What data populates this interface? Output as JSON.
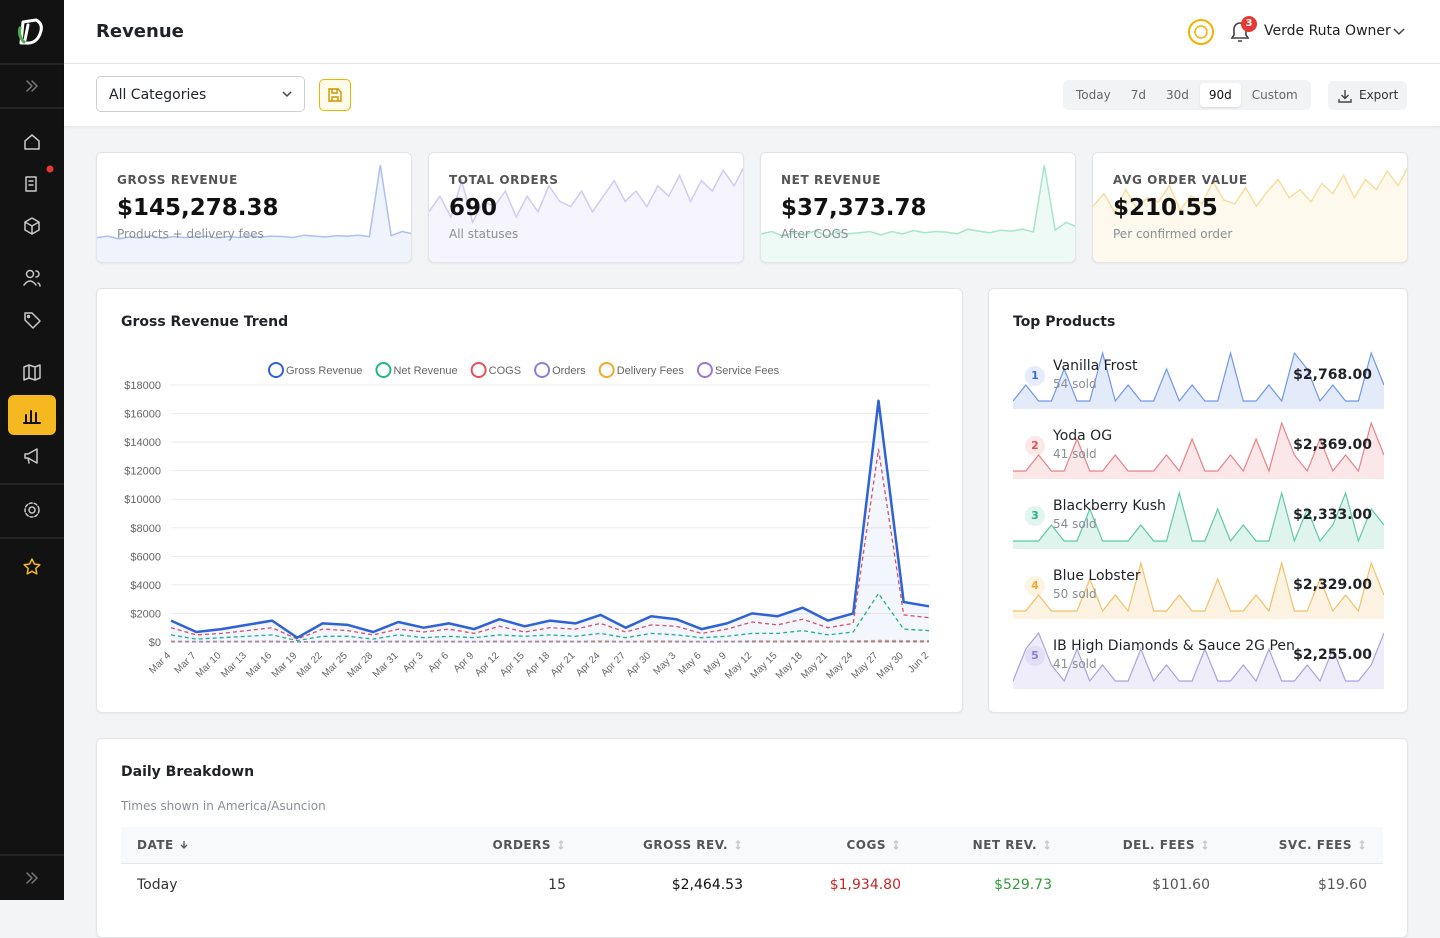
{
  "header": {
    "title": "Revenue",
    "notification_count": 3,
    "user": "Verde Ruta Owner"
  },
  "filters": {
    "category": "All Categories",
    "ranges": [
      "Today",
      "7d",
      "30d",
      "90d",
      "Custom"
    ],
    "selected_range": 3,
    "export": "Export"
  },
  "kpis": [
    {
      "label": "GROSS REVENUE",
      "value": "$145,278.38",
      "note": "Products + delivery fees",
      "color": "#8ea8ec",
      "trend": [
        1200,
        1500,
        900,
        1300,
        1100,
        1600,
        1000,
        1400,
        1200,
        1300,
        1500,
        1100,
        1400,
        1200,
        1600,
        1300,
        1500,
        1400,
        1200,
        1700,
        1500,
        1300,
        1600,
        1500,
        1700,
        1400,
        16900,
        1600,
        2500,
        2000
      ]
    },
    {
      "label": "TOTAL ORDERS",
      "value": "690",
      "note": "All statuses",
      "color": "#bdb8ef",
      "trend": [
        6,
        9,
        5,
        12,
        4,
        8,
        7,
        10,
        5,
        9,
        6,
        11,
        8,
        7,
        10,
        6,
        9,
        12,
        8,
        10,
        7,
        11,
        9,
        13,
        8,
        12,
        10,
        14,
        11,
        15
      ]
    },
    {
      "label": "NET REVENUE",
      "value": "$37,373.78",
      "note": "After COGS",
      "color": "#86dcb5",
      "trend": [
        400,
        500,
        300,
        450,
        350,
        550,
        300,
        500,
        400,
        450,
        500,
        350,
        500,
        400,
        550,
        450,
        500,
        480,
        400,
        600,
        520,
        450,
        560,
        520,
        600,
        480,
        3400,
        560,
        900,
        700
      ]
    },
    {
      "label": "AVG ORDER VALUE",
      "value": "$210.55",
      "note": "Per confirmed order",
      "color": "#f5d27e",
      "trend": [
        180,
        240,
        150,
        260,
        170,
        220,
        200,
        280,
        160,
        230,
        190,
        300,
        210,
        190,
        270,
        180,
        250,
        310,
        220,
        260,
        200,
        290,
        240,
        330,
        220,
        310,
        260,
        350,
        280,
        380
      ]
    }
  ],
  "trend_chart": {
    "type": "line",
    "title": "Gross Revenue Trend",
    "x": [
      "Mar 4",
      "Mar 7",
      "Mar 10",
      "Mar 13",
      "Mar 16",
      "Mar 19",
      "Mar 22",
      "Mar 25",
      "Mar 28",
      "Mar 31",
      "Apr 3",
      "Apr 6",
      "Apr 9",
      "Apr 12",
      "Apr 15",
      "Apr 18",
      "Apr 21",
      "Apr 24",
      "Apr 27",
      "Apr 30",
      "May 3",
      "May 6",
      "May 9",
      "May 12",
      "May 15",
      "May 18",
      "May 21",
      "May 24",
      "May 27",
      "May 30",
      "Jun 2"
    ],
    "series": [
      {
        "name": "Gross Revenue",
        "color": "#2f62d6",
        "values": [
          1500,
          700,
          900,
          1200,
          1500,
          300,
          1300,
          1200,
          700,
          1400,
          1000,
          1300,
          900,
          1600,
          1100,
          1500,
          1300,
          1900,
          1000,
          1800,
          1600,
          900,
          1300,
          2000,
          1800,
          2400,
          1500,
          2000,
          16900,
          2800,
          2500
        ]
      },
      {
        "name": "Net Revenue",
        "color": "#24b38a",
        "values": [
          500,
          200,
          300,
          400,
          500,
          100,
          400,
          400,
          200,
          500,
          300,
          400,
          300,
          500,
          400,
          500,
          400,
          600,
          300,
          600,
          500,
          300,
          400,
          600,
          600,
          800,
          500,
          700,
          3400,
          900,
          800
        ]
      },
      {
        "name": "COGS",
        "color": "#e0525b",
        "values": [
          1000,
          500,
          600,
          800,
          1000,
          200,
          900,
          800,
          500,
          900,
          700,
          900,
          600,
          1100,
          700,
          1000,
          900,
          1300,
          700,
          1200,
          1100,
          600,
          900,
          1400,
          1200,
          1600,
          1000,
          1300,
          13500,
          1900,
          1700
        ]
      },
      {
        "name": "Orders",
        "color": "#8b80d8",
        "values": [
          8,
          5,
          6,
          7,
          8,
          3,
          7,
          7,
          5,
          8,
          6,
          7,
          6,
          9,
          7,
          8,
          7,
          10,
          6,
          9,
          9,
          6,
          8,
          11,
          10,
          12,
          8,
          11,
          15,
          13,
          12
        ]
      },
      {
        "name": "Delivery Fees",
        "color": "#f0a830",
        "values": [
          60,
          40,
          50,
          50,
          60,
          20,
          50,
          50,
          40,
          60,
          50,
          50,
          40,
          60,
          50,
          60,
          50,
          70,
          40,
          70,
          60,
          40,
          50,
          80,
          70,
          90,
          60,
          80,
          110,
          100,
          90
        ]
      },
      {
        "name": "Service Fees",
        "color": "#9a78d6",
        "values": [
          12,
          8,
          9,
          10,
          12,
          4,
          10,
          10,
          8,
          12,
          9,
          10,
          8,
          12,
          10,
          12,
          10,
          14,
          8,
          14,
          12,
          8,
          10,
          16,
          14,
          18,
          12,
          16,
          22,
          20,
          18
        ]
      }
    ],
    "ylim": [
      0,
      18000
    ],
    "yticks": [
      {
        "value": 0,
        "label": "$0"
      },
      {
        "value": 2000,
        "label": "$2000"
      },
      {
        "value": 4000,
        "label": "$4000"
      },
      {
        "value": 6000,
        "label": "$6000"
      },
      {
        "value": 8000,
        "label": "$8000"
      },
      {
        "value": 10000,
        "label": "$10000"
      },
      {
        "value": 12000,
        "label": "$12000"
      },
      {
        "value": 14000,
        "label": "$14000"
      },
      {
        "value": 16000,
        "label": "$16000"
      },
      {
        "value": 18000,
        "label": "$18000"
      }
    ],
    "grid": true,
    "legend": "top"
  },
  "top_products": {
    "title": "Top Products",
    "items": [
      {
        "rank": 1,
        "name": "Vanilla Frost",
        "sold": "54 sold",
        "revenue": "$2,768.00",
        "color": "#3b6fe0",
        "trend": [
          0,
          1,
          0,
          0,
          2,
          0,
          0,
          3,
          0,
          1,
          0,
          0,
          2,
          0,
          1,
          0,
          0,
          3,
          0,
          0,
          1,
          0,
          3,
          2,
          0,
          1,
          0,
          0,
          3,
          1
        ]
      },
      {
        "rank": 2,
        "name": "Yoda OG",
        "sold": "41 sold",
        "revenue": "$2,369.00",
        "color": "#e0525b",
        "trend": [
          0,
          0,
          1,
          0,
          0,
          2,
          0,
          0,
          1,
          0,
          0,
          0,
          1,
          0,
          2,
          0,
          0,
          1,
          0,
          2,
          0,
          3,
          1,
          0,
          2,
          0,
          1,
          0,
          3,
          1
        ]
      },
      {
        "rank": 3,
        "name": "Blackberry Kush",
        "sold": "54 sold",
        "revenue": "$2,333.00",
        "color": "#24b38a",
        "trend": [
          0,
          0,
          0,
          1,
          0,
          0,
          2,
          0,
          0,
          0,
          1,
          0,
          0,
          3,
          0,
          0,
          2,
          0,
          1,
          0,
          0,
          3,
          0,
          2,
          0,
          1,
          3,
          0,
          2,
          1
        ]
      },
      {
        "rank": 4,
        "name": "Blue Lobster",
        "sold": "50 sold",
        "revenue": "$2,329.00",
        "color": "#f0a830",
        "trend": [
          0,
          0,
          1,
          0,
          0,
          0,
          2,
          0,
          1,
          0,
          3,
          0,
          0,
          1,
          0,
          0,
          2,
          0,
          0,
          1,
          0,
          3,
          0,
          0,
          2,
          0,
          1,
          0,
          3,
          1
        ]
      },
      {
        "rank": 5,
        "name": "IB High Diamonds & Sauce 2G Pen",
        "sold": "41 sold",
        "revenue": "$2,255.00",
        "color": "#8b7fd6",
        "trend": [
          0,
          2,
          3,
          1,
          0,
          2,
          0,
          1,
          0,
          0,
          2,
          0,
          1,
          0,
          0,
          2,
          0,
          0,
          1,
          0,
          2,
          0,
          0,
          1,
          0,
          2,
          0,
          0,
          1,
          3
        ]
      }
    ]
  },
  "daily_breakdown": {
    "title": "Daily Breakdown",
    "timezone_note": "Times shown in America/Asuncion",
    "columns": [
      "DATE",
      "ORDERS",
      "GROSS REV.",
      "COGS",
      "NET REV.",
      "DEL. FEES",
      "SVC. FEES"
    ],
    "sort": {
      "column": 0,
      "direction": "desc"
    },
    "rows": [
      [
        "Today",
        15,
        "$2,464.53",
        "$1,934.80",
        "$529.73",
        "$101.60",
        "$19.60"
      ]
    ]
  }
}
